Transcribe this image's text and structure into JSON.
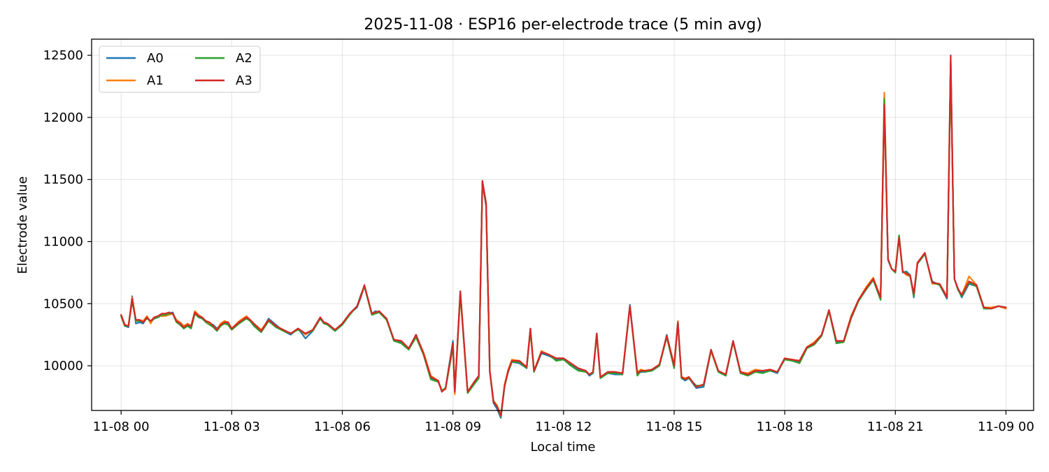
{
  "chart_data": {
    "type": "line",
    "title": "2025-11-08 · ESP16 per-electrode trace (5 min avg)",
    "xlabel": "Local time",
    "ylabel": "Electrode value",
    "x_unit": "hours since 11-08 00:00",
    "xlim": [
      -0.8,
      24.75
    ],
    "ylim": [
      9640,
      12630
    ],
    "x_ticks": [
      {
        "value": 0,
        "label": "11-08 00"
      },
      {
        "value": 3,
        "label": "11-08 03"
      },
      {
        "value": 6,
        "label": "11-08 06"
      },
      {
        "value": 9,
        "label": "11-08 09"
      },
      {
        "value": 12,
        "label": "11-08 12"
      },
      {
        "value": 15,
        "label": "11-08 15"
      },
      {
        "value": 18,
        "label": "11-08 18"
      },
      {
        "value": 21,
        "label": "11-08 21"
      },
      {
        "value": 24,
        "label": "11-09 00"
      }
    ],
    "y_ticks": [
      {
        "value": 10000,
        "label": "10000"
      },
      {
        "value": 10500,
        "label": "10500"
      },
      {
        "value": 11000,
        "label": "11000"
      },
      {
        "value": 11500,
        "label": "11500"
      },
      {
        "value": 12000,
        "label": "12000"
      },
      {
        "value": 12500,
        "label": "12500"
      }
    ],
    "grid": true,
    "legend": {
      "position": "top-left",
      "columns": 2
    },
    "base_x": [
      0,
      0.1,
      0.2,
      0.3,
      0.4,
      0.5,
      0.6,
      0.7,
      0.8,
      0.9,
      1.0,
      1.1,
      1.2,
      1.3,
      1.4,
      1.5,
      1.6,
      1.7,
      1.8,
      1.9,
      2.0,
      2.1,
      2.2,
      2.3,
      2.4,
      2.5,
      2.6,
      2.7,
      2.8,
      2.9,
      3.0,
      3.2,
      3.4,
      3.5,
      3.6,
      3.8,
      4.0,
      4.2,
      4.4,
      4.6,
      4.8,
      5.0,
      5.2,
      5.4,
      5.5,
      5.6,
      5.8,
      6.0,
      6.2,
      6.4,
      6.5,
      6.6,
      6.8,
      6.9,
      7.0,
      7.2,
      7.4,
      7.6,
      7.8,
      8.0,
      8.2,
      8.4,
      8.6,
      8.7,
      8.8,
      9.0,
      9.05,
      9.2,
      9.4,
      9.6,
      9.7,
      9.8,
      9.9,
      10.0,
      10.1,
      10.2,
      10.3,
      10.4,
      10.5,
      10.6,
      10.8,
      11.0,
      11.1,
      11.2,
      11.4,
      11.6,
      11.8,
      12.0,
      12.2,
      12.4,
      12.6,
      12.7,
      12.8,
      12.9,
      13.0,
      13.2,
      13.4,
      13.6,
      13.8,
      14.0,
      14.1,
      14.2,
      14.4,
      14.6,
      14.8,
      15.0,
      15.1,
      15.2,
      15.3,
      15.4,
      15.6,
      15.8,
      16.0,
      16.2,
      16.4,
      16.6,
      16.8,
      17.0,
      17.2,
      17.4,
      17.6,
      17.8,
      18.0,
      18.2,
      18.4,
      18.6,
      18.8,
      19.0,
      19.2,
      19.4,
      19.6,
      19.8,
      20.0,
      20.2,
      20.4,
      20.6,
      20.7,
      20.8,
      20.9,
      21.0,
      21.1,
      21.2,
      21.3,
      21.4,
      21.5,
      21.6,
      21.8,
      22.0,
      22.2,
      22.4,
      22.5,
      22.6,
      22.7,
      22.8,
      23.0,
      23.2,
      23.4,
      23.6,
      23.8,
      24.0
    ],
    "series": [
      {
        "name": "A0",
        "color": "#1f77b4",
        "y": [
          10400,
          10320,
          10310,
          10560,
          10340,
          10350,
          10340,
          10390,
          10350,
          10380,
          10390,
          10410,
          10410,
          10420,
          10430,
          10360,
          10340,
          10300,
          10330,
          10310,
          10430,
          10400,
          10380,
          10360,
          10340,
          10330,
          10300,
          10330,
          10350,
          10340,
          10300,
          10350,
          10390,
          10360,
          10330,
          10280,
          10380,
          10330,
          10280,
          10250,
          10300,
          10220,
          10280,
          10380,
          10350,
          10340,
          10280,
          10340,
          10420,
          10470,
          10550,
          10640,
          10420,
          10440,
          10430,
          10380,
          10200,
          10190,
          10130,
          10250,
          10100,
          9900,
          9880,
          9800,
          9820,
          10200,
          9790,
          10600,
          9780,
          9870,
          9920,
          11480,
          11280,
          9950,
          9700,
          9650,
          9580,
          9840,
          9950,
          10030,
          10020,
          9980,
          10300,
          9950,
          10100,
          10080,
          10050,
          10050,
          10010,
          9970,
          9960,
          9920,
          9940,
          10250,
          9900,
          9940,
          9930,
          9930,
          10490,
          9930,
          9950,
          9950,
          9960,
          10000,
          10250,
          10000,
          10350,
          9900,
          9880,
          9900,
          9820,
          9830,
          10120,
          9950,
          9920,
          10200,
          9940,
          9930,
          9960,
          9950,
          9960,
          9940,
          10060,
          10040,
          10030,
          10150,
          10180,
          10250,
          10440,
          10190,
          10200,
          10400,
          10530,
          10620,
          10700,
          10540,
          12120,
          10850,
          10780,
          10750,
          11040,
          10750,
          10760,
          10730,
          10550,
          10820,
          10900,
          10680,
          10650,
          10540,
          12450,
          10700,
          10620,
          10550,
          10660,
          10640,
          10470,
          10460,
          10480,
          10460,
          10420,
          10440
        ]
      },
      {
        "name": "A1",
        "color": "#ff7f0e",
        "y": [
          10410,
          10330,
          10320,
          10550,
          10360,
          10370,
          10360,
          10400,
          10340,
          10390,
          10400,
          10400,
          10400,
          10410,
          10420,
          10370,
          10350,
          10320,
          10340,
          10320,
          10440,
          10410,
          10390,
          10350,
          10340,
          10320,
          10290,
          10340,
          10360,
          10350,
          10300,
          10360,
          10400,
          10370,
          10340,
          10290,
          10370,
          10320,
          10290,
          10260,
          10300,
          10250,
          10290,
          10390,
          10350,
          10330,
          10290,
          10330,
          10420,
          10480,
          10560,
          10640,
          10420,
          10430,
          10430,
          10370,
          10210,
          10200,
          10140,
          10240,
          10110,
          9920,
          9880,
          9800,
          9810,
          10160,
          9770,
          10570,
          9790,
          9880,
          9910,
          11480,
          11300,
          9960,
          9720,
          9680,
          9600,
          9850,
          9970,
          10050,
          10040,
          9990,
          10290,
          9960,
          10120,
          10090,
          10060,
          10060,
          10020,
          9980,
          9960,
          9930,
          9950,
          10240,
          9910,
          9950,
          9950,
          9940,
          10470,
          9950,
          9970,
          9960,
          9970,
          10010,
          10240,
          10010,
          10360,
          9910,
          9900,
          9910,
          9830,
          9850,
          10120,
          9950,
          9930,
          10190,
          9950,
          9940,
          9970,
          9960,
          9970,
          9950,
          10060,
          10050,
          10040,
          10150,
          10190,
          10250,
          10440,
          10200,
          10200,
          10400,
          10530,
          10630,
          10710,
          10550,
          12200,
          10860,
          10780,
          10760,
          11050,
          10760,
          10730,
          10720,
          10570,
          10830,
          10910,
          10660,
          10660,
          10560,
          12420,
          10700,
          10610,
          10570,
          10720,
          10650,
          10470,
          10470,
          10480,
          10460,
          10420,
          10410
        ]
      },
      {
        "name": "A2",
        "color": "#2ca02c",
        "y": [
          10400,
          10320,
          10320,
          10520,
          10360,
          10360,
          10350,
          10380,
          10360,
          10380,
          10390,
          10410,
          10410,
          10420,
          10420,
          10350,
          10330,
          10300,
          10320,
          10300,
          10420,
          10390,
          10380,
          10350,
          10330,
          10310,
          10280,
          10320,
          10340,
          10330,
          10290,
          10340,
          10380,
          10360,
          10320,
          10270,
          10360,
          10310,
          10280,
          10260,
          10290,
          10260,
          10280,
          10380,
          10340,
          10330,
          10280,
          10330,
          10410,
          10480,
          10570,
          10640,
          10410,
          10420,
          10430,
          10370,
          10200,
          10180,
          10130,
          10230,
          10090,
          9890,
          9870,
          9800,
          9820,
          10150,
          9790,
          10580,
          9780,
          9860,
          9900,
          11460,
          11300,
          9950,
          9720,
          9670,
          9590,
          9830,
          9960,
          10030,
          10030,
          9980,
          10280,
          9950,
          10110,
          10090,
          10040,
          10050,
          10000,
          9960,
          9950,
          9930,
          9940,
          10260,
          9900,
          9940,
          9940,
          9930,
          10480,
          9920,
          9960,
          9950,
          9960,
          10000,
          10230,
          9980,
          10350,
          9900,
          9890,
          9900,
          9840,
          9840,
          10130,
          9950,
          9920,
          10190,
          9940,
          9920,
          9950,
          9940,
          9960,
          9950,
          10050,
          10040,
          10020,
          10140,
          10170,
          10240,
          10440,
          10180,
          10190,
          10380,
          10520,
          10610,
          10690,
          10530,
          12150,
          10860,
          10780,
          10750,
          11050,
          10760,
          10750,
          10720,
          10560,
          10820,
          10900,
          10670,
          10650,
          10550,
          12440,
          10700,
          10610,
          10560,
          10670,
          10640,
          10460,
          10460,
          10480,
          10470,
          10420,
          10440
        ]
      },
      {
        "name": "A3",
        "color": "#d62728",
        "y": [
          10410,
          10330,
          10320,
          10540,
          10370,
          10370,
          10350,
          10390,
          10360,
          10390,
          10400,
          10420,
          10420,
          10430,
          10420,
          10360,
          10340,
          10310,
          10330,
          10320,
          10430,
          10400,
          10390,
          10360,
          10350,
          10320,
          10290,
          10330,
          10350,
          10350,
          10300,
          10350,
          10390,
          10370,
          10340,
          10280,
          10370,
          10320,
          10290,
          10260,
          10300,
          10260,
          10290,
          10390,
          10350,
          10340,
          10290,
          10340,
          10420,
          10480,
          10560,
          10650,
          10420,
          10430,
          10440,
          10380,
          10210,
          10200,
          10140,
          10250,
          10100,
          9910,
          9880,
          9790,
          9820,
          10180,
          9790,
          10600,
          9790,
          9880,
          9920,
          11490,
          11310,
          9960,
          9710,
          9670,
          9600,
          9840,
          9960,
          10040,
          10040,
          9990,
          10300,
          9960,
          10110,
          10090,
          10060,
          10060,
          10020,
          9980,
          9960,
          9930,
          9950,
          10260,
          9910,
          9950,
          9950,
          9940,
          10480,
          9940,
          9960,
          9960,
          9970,
          10010,
          10240,
          10000,
          10350,
          9910,
          9890,
          9910,
          9830,
          9850,
          10130,
          9960,
          9930,
          10200,
          9950,
          9930,
          9960,
          9960,
          9970,
          9950,
          10060,
          10050,
          10040,
          10150,
          10180,
          10250,
          10450,
          10200,
          10200,
          10390,
          10530,
          10620,
          10700,
          10550,
          12100,
          10860,
          10780,
          10760,
          11030,
          10760,
          10740,
          10730,
          10580,
          10830,
          10910,
          10670,
          10660,
          10550,
          12500,
          10700,
          10620,
          10570,
          10680,
          10650,
          10470,
          10460,
          10480,
          10470,
          10420,
          10420
        ]
      }
    ]
  }
}
